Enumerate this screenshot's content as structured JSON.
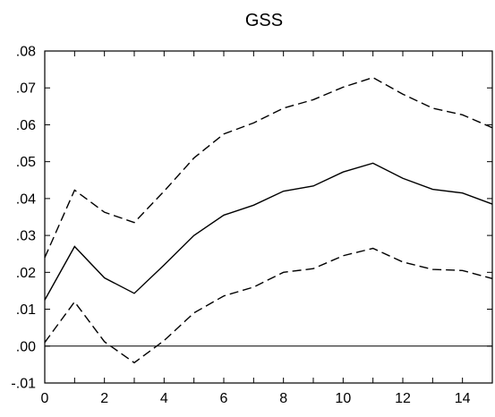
{
  "chart_data": {
    "type": "line",
    "title": "GSS",
    "xlabel": "",
    "ylabel": "",
    "xlim": [
      0,
      15
    ],
    "ylim": [
      -0.01,
      0.08
    ],
    "grid": false,
    "legend": "none",
    "x": [
      0,
      1,
      2,
      3,
      4,
      5,
      6,
      7,
      8,
      9,
      10,
      11,
      12,
      13,
      14,
      15
    ],
    "x_ticks": [
      0,
      2,
      4,
      6,
      8,
      10,
      12,
      14
    ],
    "x_tick_labels": [
      "0",
      "2",
      "4",
      "6",
      "8",
      "10",
      "12",
      "14"
    ],
    "y_ticks": [
      -0.01,
      0.0,
      0.01,
      0.02,
      0.03,
      0.04,
      0.05,
      0.06,
      0.07,
      0.08
    ],
    "y_tick_labels": [
      "-.01",
      ".00",
      ".01",
      ".02",
      ".03",
      ".04",
      ".05",
      ".06",
      ".07",
      ".08"
    ],
    "zero_line": 0,
    "series": [
      {
        "style": "solid",
        "color": "#000000",
        "values": [
          0.0125,
          0.027,
          0.0185,
          0.0143,
          0.022,
          0.03,
          0.0355,
          0.0382,
          0.042,
          0.0434,
          0.0472,
          0.0496,
          0.0455,
          0.0425,
          0.0415,
          0.0385
        ]
      },
      {
        "style": "dashed",
        "color": "#000000",
        "values": [
          0.024,
          0.0423,
          0.0363,
          0.0335,
          0.042,
          0.051,
          0.0575,
          0.0605,
          0.0645,
          0.0668,
          0.0702,
          0.0728,
          0.0683,
          0.0645,
          0.0627,
          0.0592
        ]
      },
      {
        "style": "dashed",
        "color": "#000000",
        "values": [
          0.001,
          0.012,
          0.0012,
          -0.0045,
          0.0015,
          0.009,
          0.0136,
          0.016,
          0.02,
          0.021,
          0.0245,
          0.0265,
          0.0228,
          0.0208,
          0.0205,
          0.0183
        ]
      }
    ]
  }
}
